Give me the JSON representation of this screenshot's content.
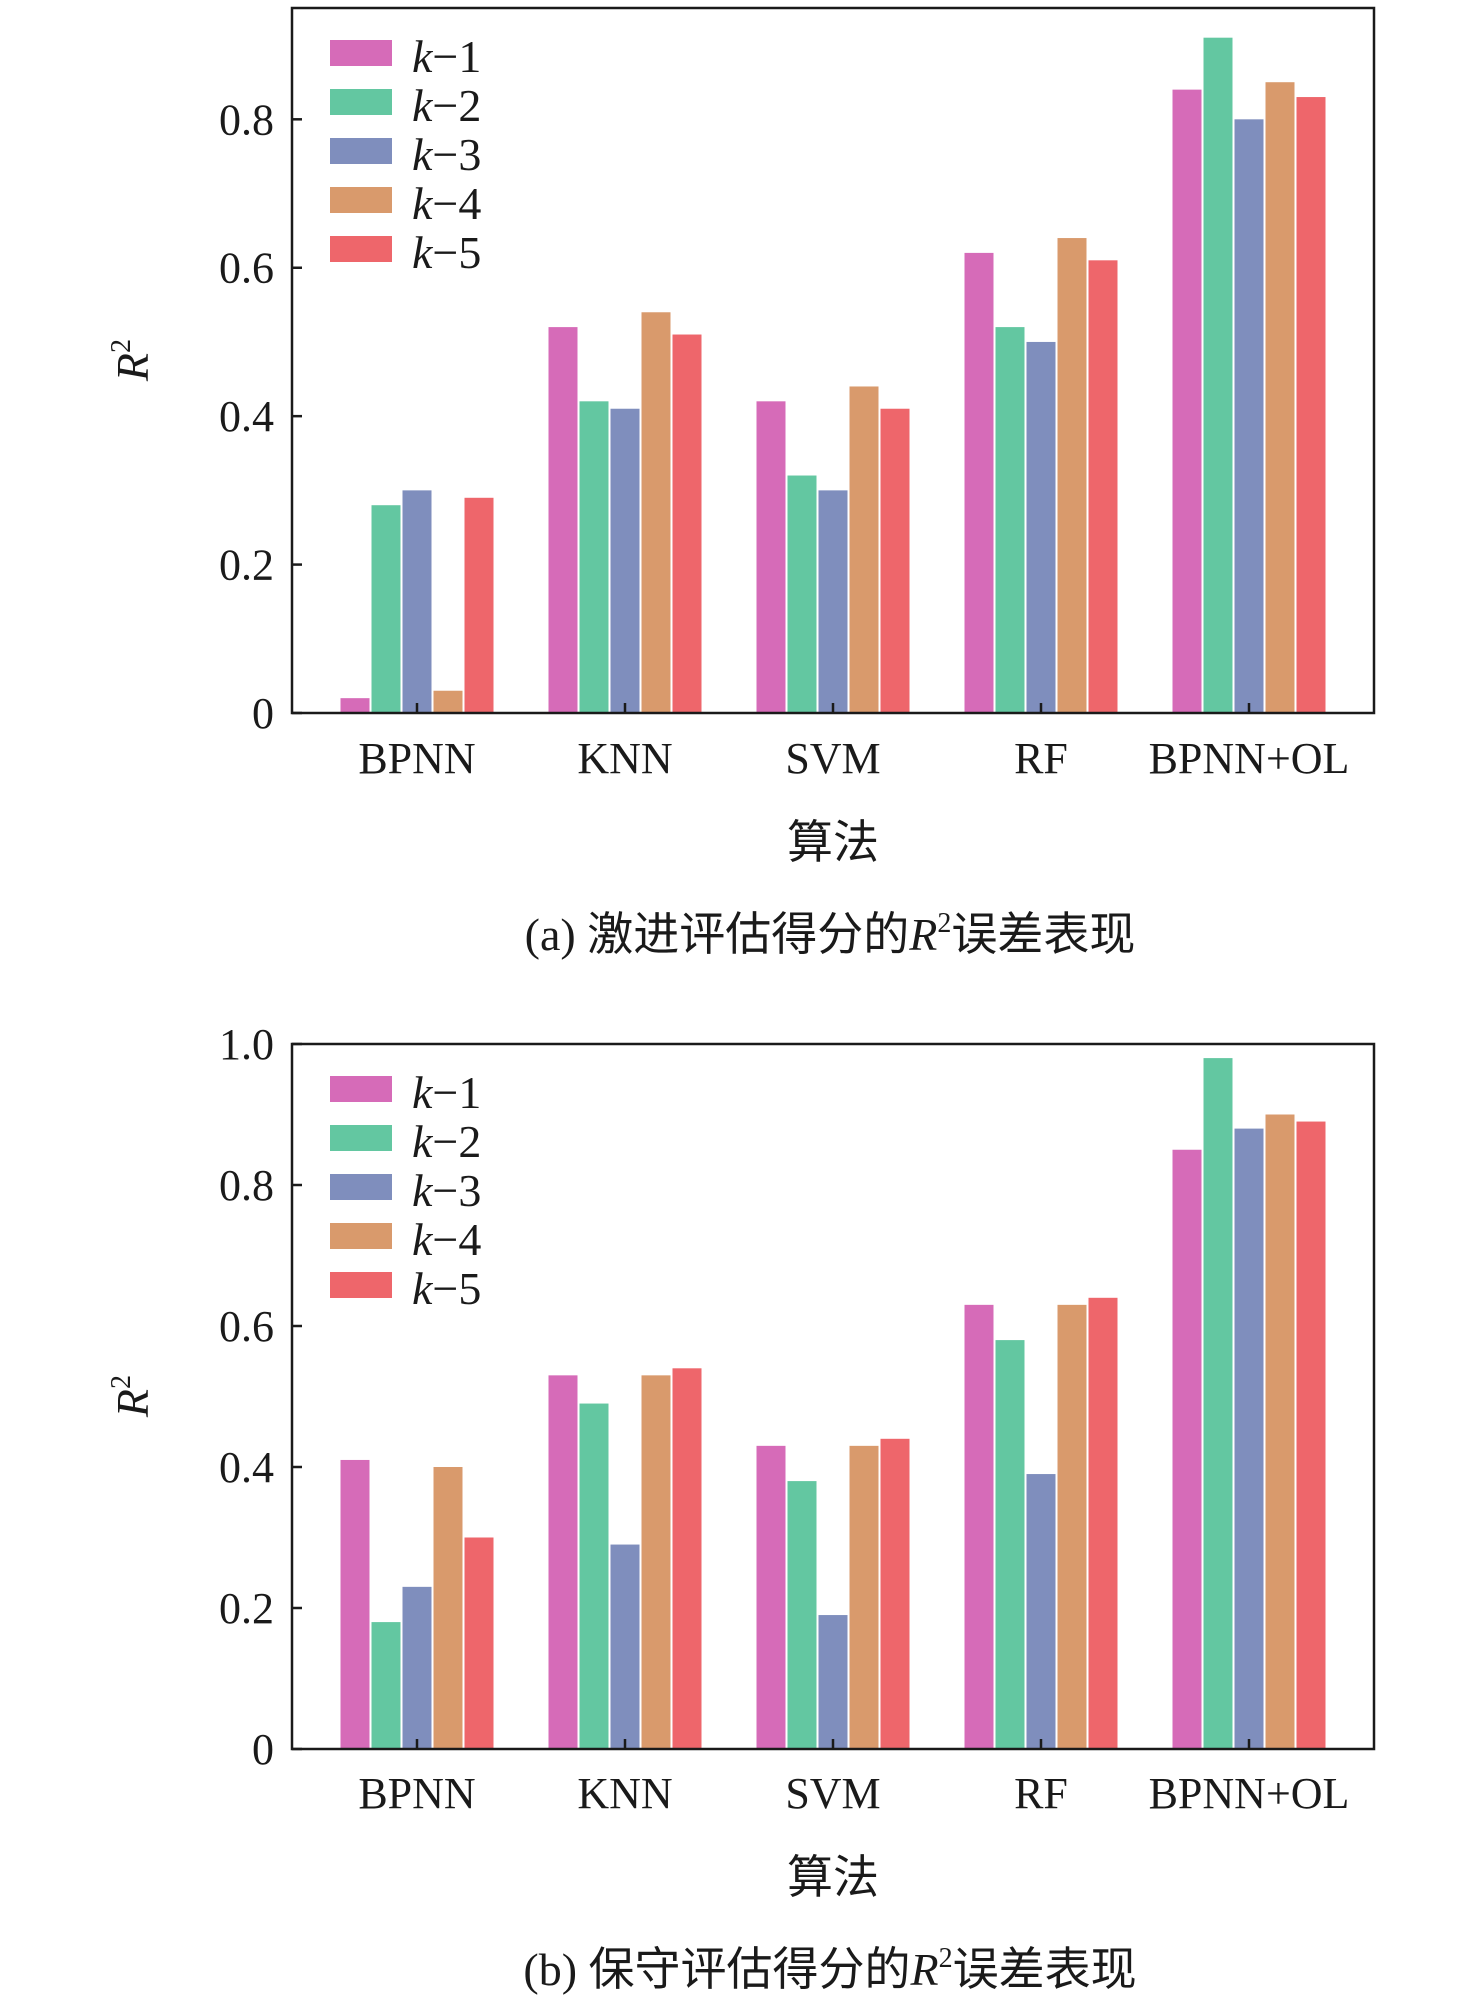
{
  "charts": [
    {
      "caption": {
        "prefix": "(a) 激进评估得分的",
        "r": "R",
        "sup": "2",
        "suffix": "误差表现"
      }
    },
    {
      "caption": {
        "prefix": "(b) 保守评估得分的",
        "r": "R",
        "sup": "2",
        "suffix": "误差表现"
      }
    }
  ],
  "colors": [
    "#D66BB8",
    "#63C7A1",
    "#7F8EBD",
    "#D99A6C",
    "#EE666B"
  ],
  "chart_data": [
    {
      "type": "bar",
      "xlabel": "算法",
      "ylabel": {
        "text": "R",
        "sup": "2"
      },
      "ylim": [
        0,
        0.95
      ],
      "yticks": [
        0,
        0.2,
        0.4,
        0.6,
        0.8
      ],
      "ytick_labels": [
        "0",
        "0.2",
        "0.4",
        "0.6",
        "0.8"
      ],
      "categories": [
        "BPNN",
        "KNN",
        "SVM",
        "RF",
        "BPNN+OL"
      ],
      "legend_position": "top-left",
      "grid": false,
      "series": [
        {
          "name": "k−1",
          "values": [
            0.02,
            0.52,
            0.42,
            0.62,
            0.84
          ]
        },
        {
          "name": "k−2",
          "values": [
            0.28,
            0.42,
            0.32,
            0.52,
            0.91
          ]
        },
        {
          "name": "k−3",
          "values": [
            0.3,
            0.41,
            0.3,
            0.5,
            0.8
          ]
        },
        {
          "name": "k−4",
          "values": [
            0.03,
            0.54,
            0.44,
            0.64,
            0.85
          ]
        },
        {
          "name": "k−5",
          "values": [
            0.29,
            0.51,
            0.41,
            0.61,
            0.83
          ]
        }
      ]
    },
    {
      "type": "bar",
      "xlabel": "算法",
      "ylabel": {
        "text": "R",
        "sup": "2"
      },
      "ylim": [
        0,
        1.0
      ],
      "yticks": [
        0,
        0.2,
        0.4,
        0.6,
        0.8,
        1.0
      ],
      "ytick_labels": [
        "0",
        "0.2",
        "0.4",
        "0.6",
        "0.8",
        "1.0"
      ],
      "categories": [
        "BPNN",
        "KNN",
        "SVM",
        "RF",
        "BPNN+OL"
      ],
      "legend_position": "top-left",
      "grid": false,
      "series": [
        {
          "name": "k−1",
          "values": [
            0.41,
            0.53,
            0.43,
            0.63,
            0.85
          ]
        },
        {
          "name": "k−2",
          "values": [
            0.18,
            0.49,
            0.38,
            0.58,
            0.98
          ]
        },
        {
          "name": "k−3",
          "values": [
            0.23,
            0.29,
            0.19,
            0.39,
            0.88
          ]
        },
        {
          "name": "k−4",
          "values": [
            0.4,
            0.53,
            0.43,
            0.63,
            0.9
          ]
        },
        {
          "name": "k−5",
          "values": [
            0.3,
            0.54,
            0.44,
            0.64,
            0.89
          ]
        }
      ]
    }
  ]
}
